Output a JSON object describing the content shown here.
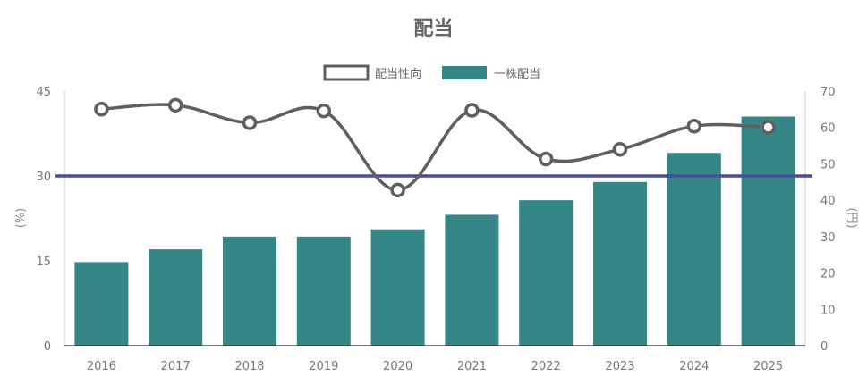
{
  "chart_data": {
    "type": "bar",
    "title": "配当",
    "categories": [
      "2016",
      "2017",
      "2018",
      "2019",
      "2020",
      "2021",
      "2022",
      "2023",
      "2024",
      "2025"
    ],
    "series": [
      {
        "name": "配当性向",
        "type": "line",
        "axis": "left",
        "color": "#5f5f5f",
        "values": [
          41.8,
          42.5,
          39.4,
          41.5,
          27.5,
          41.6,
          33.0,
          34.7,
          38.8,
          38.6
        ]
      },
      {
        "name": "一株配当",
        "type": "bar",
        "axis": "right",
        "color": "#348786",
        "values": [
          23,
          26.5,
          30,
          30,
          32,
          36,
          40,
          45,
          53,
          63
        ]
      }
    ],
    "y_left": {
      "label": "(%)",
      "ticks": [
        "0",
        "15",
        "30",
        "45"
      ],
      "min": 0,
      "max": 45
    },
    "y_right": {
      "label": "(円)",
      "ticks": [
        "0",
        "10",
        "20",
        "30",
        "40",
        "50",
        "60",
        "70"
      ],
      "min": 0,
      "max": 70
    },
    "reference_line": {
      "axis": "left",
      "value": 30,
      "color": "#4b4aa0"
    },
    "legend_position": "top-center",
    "grid": false
  }
}
